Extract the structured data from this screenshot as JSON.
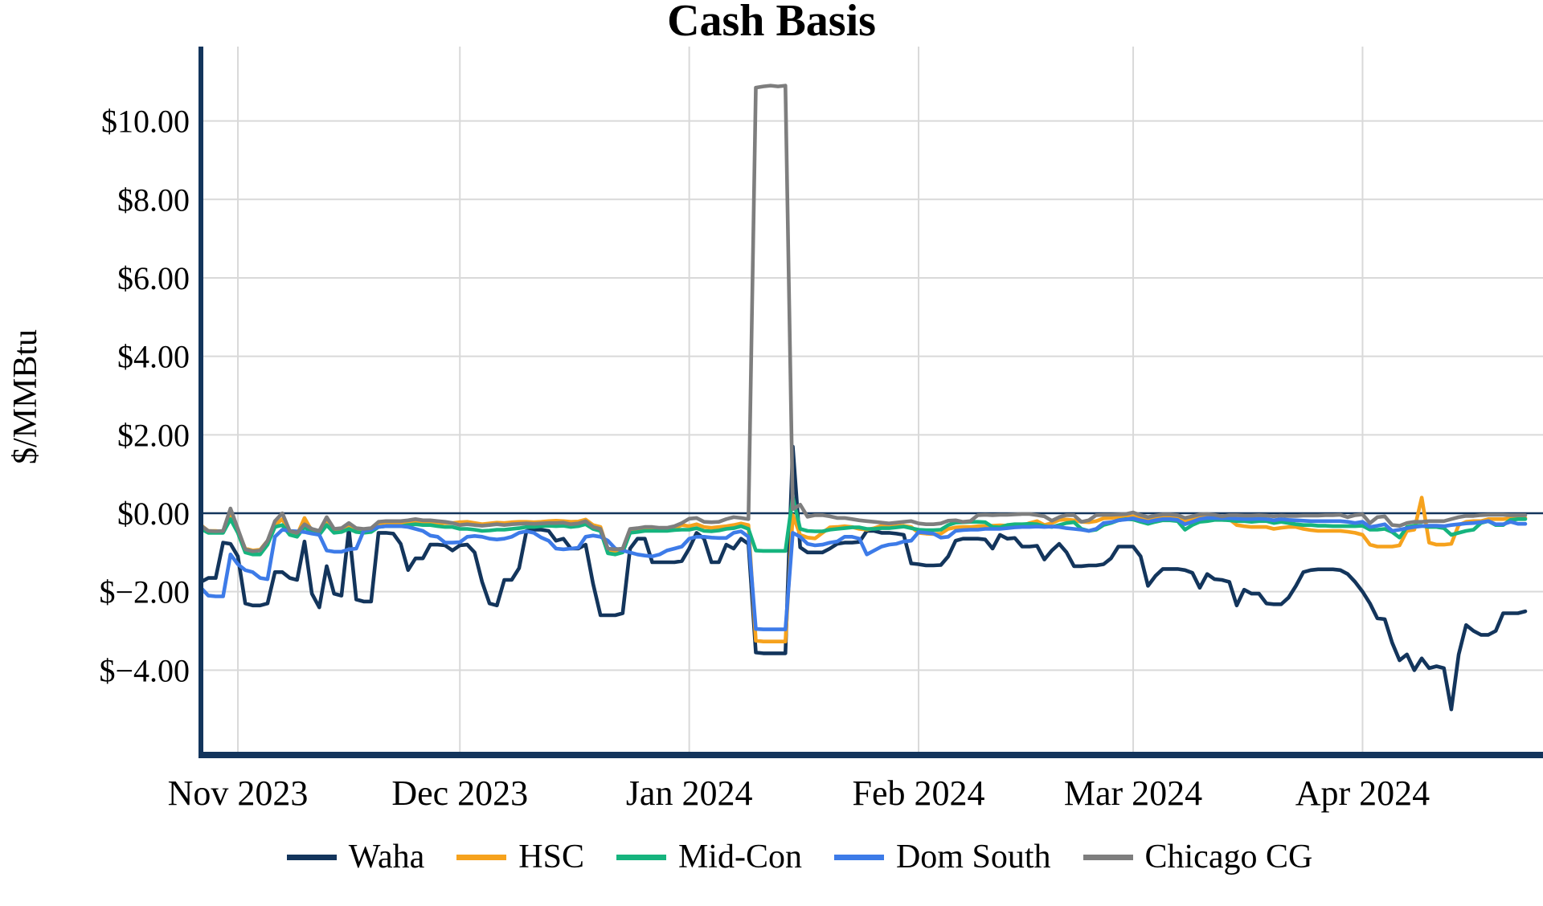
{
  "chart_data": {
    "type": "line",
    "title": "Cash Basis",
    "ylabel": "$/MMBtu",
    "grid": true,
    "legend_position": "bottom",
    "axis_color": "#13355C",
    "gridline_color": "#D9D9D9",
    "zero_line": true,
    "x_axis": {
      "start_date": "2023-10-27",
      "end_date": "2024-04-23",
      "n_points": 180,
      "tick_labels": [
        "Nov 2023",
        "Dec 2023",
        "Jan 2024",
        "Feb 2024",
        "Mar 2024",
        "Apr 2024"
      ],
      "tick_day_indices": [
        5,
        35,
        66,
        97,
        126,
        157
      ]
    },
    "y_axis": {
      "tick_values": [
        10,
        8,
        6,
        4,
        2,
        0,
        -2,
        -4
      ],
      "tick_labels": [
        "$10.00",
        "$8.00",
        "$6.00",
        "$4.00",
        "$2.00",
        "$0.00",
        "$−2.00",
        "$−4.00"
      ],
      "range": [
        -6.15,
        11.9
      ]
    },
    "series": [
      {
        "name": "Waha",
        "color": "#13355C",
        "values": [
          -1.75,
          -1.65,
          -1.65,
          -0.75,
          -0.78,
          -1.1,
          -2.3,
          -2.35,
          -2.35,
          -2.3,
          -1.5,
          -1.5,
          -1.65,
          -1.7,
          -0.72,
          -2.05,
          -2.4,
          -1.35,
          -2.05,
          -2.1,
          -0.4,
          -2.2,
          -2.25,
          -2.25,
          -0.5,
          -0.5,
          -0.52,
          -0.78,
          -1.45,
          -1.15,
          -1.15,
          -0.8,
          -0.8,
          -0.82,
          -0.95,
          -0.82,
          -0.8,
          -1.0,
          -1.75,
          -2.3,
          -2.35,
          -1.7,
          -1.7,
          -1.4,
          -0.45,
          -0.42,
          -0.42,
          -0.45,
          -0.7,
          -0.65,
          -0.9,
          -0.9,
          -0.8,
          -1.8,
          -2.6,
          -2.6,
          -2.6,
          -2.55,
          -0.9,
          -0.65,
          -0.65,
          -1.25,
          -1.25,
          -1.25,
          -1.25,
          -1.22,
          -0.9,
          -0.5,
          -0.65,
          -1.25,
          -1.25,
          -0.8,
          -0.9,
          -0.65,
          -0.78,
          -3.55,
          -3.57,
          -3.57,
          -3.57,
          -3.57,
          1.7,
          -0.87,
          -1.0,
          -1.0,
          -1.0,
          -0.9,
          -0.78,
          -0.75,
          -0.75,
          -0.73,
          -0.45,
          -0.45,
          -0.5,
          -0.5,
          -0.52,
          -0.55,
          -1.28,
          -1.3,
          -1.33,
          -1.33,
          -1.32,
          -1.1,
          -0.7,
          -0.65,
          -0.65,
          -0.65,
          -0.67,
          -0.9,
          -0.55,
          -0.65,
          -0.63,
          -0.85,
          -0.85,
          -0.83,
          -1.18,
          -0.95,
          -0.78,
          -1.0,
          -1.35,
          -1.35,
          -1.33,
          -1.33,
          -1.3,
          -1.15,
          -0.85,
          -0.85,
          -0.85,
          -1.1,
          -1.85,
          -1.6,
          -1.42,
          -1.42,
          -1.42,
          -1.45,
          -1.52,
          -1.9,
          -1.55,
          -1.68,
          -1.7,
          -1.75,
          -2.35,
          -1.95,
          -2.05,
          -2.05,
          -2.3,
          -2.32,
          -2.32,
          -2.15,
          -1.85,
          -1.5,
          -1.45,
          -1.43,
          -1.43,
          -1.43,
          -1.45,
          -1.55,
          -1.75,
          -2.0,
          -2.3,
          -2.68,
          -2.7,
          -3.3,
          -3.75,
          -3.6,
          -4.0,
          -3.7,
          -3.95,
          -3.9,
          -3.95,
          -5.0,
          -3.6,
          -2.85,
          -3.0,
          -3.1,
          -3.1,
          -3.0,
          -2.55,
          -2.55,
          -2.55,
          -2.5
        ]
      },
      {
        "name": "HSC",
        "color": "#F6A21D",
        "values": [
          -0.3,
          -0.45,
          -0.45,
          -0.47,
          -0.05,
          -0.45,
          -0.9,
          -0.95,
          -0.93,
          -0.7,
          -0.3,
          -0.15,
          -0.5,
          -0.55,
          -0.12,
          -0.45,
          -0.5,
          -0.2,
          -0.45,
          -0.42,
          -0.3,
          -0.42,
          -0.45,
          -0.42,
          -0.28,
          -0.25,
          -0.25,
          -0.25,
          -0.22,
          -0.2,
          -0.22,
          -0.22,
          -0.25,
          -0.25,
          -0.25,
          -0.23,
          -0.22,
          -0.25,
          -0.28,
          -0.26,
          -0.24,
          -0.25,
          -0.23,
          -0.22,
          -0.22,
          -0.23,
          -0.22,
          -0.2,
          -0.19,
          -0.2,
          -0.22,
          -0.21,
          -0.16,
          -0.3,
          -0.35,
          -0.95,
          -0.98,
          -0.95,
          -0.45,
          -0.42,
          -0.4,
          -0.4,
          -0.42,
          -0.42,
          -0.38,
          -0.3,
          -0.33,
          -0.28,
          -0.35,
          -0.37,
          -0.35,
          -0.33,
          -0.3,
          -0.26,
          -0.3,
          -3.25,
          -3.27,
          -3.27,
          -3.27,
          -3.27,
          -0.05,
          -0.55,
          -0.62,
          -0.64,
          -0.5,
          -0.36,
          -0.35,
          -0.33,
          -0.35,
          -0.4,
          -0.42,
          -0.38,
          -0.32,
          -0.35,
          -0.33,
          -0.32,
          -0.35,
          -0.5,
          -0.52,
          -0.53,
          -0.52,
          -0.4,
          -0.36,
          -0.35,
          -0.35,
          -0.33,
          -0.33,
          -0.32,
          -0.31,
          -0.32,
          -0.33,
          -0.32,
          -0.25,
          -0.2,
          -0.3,
          -0.25,
          -0.17,
          -0.16,
          -0.18,
          -0.22,
          -0.23,
          -0.2,
          -0.13,
          -0.12,
          -0.1,
          -0.09,
          -0.08,
          -0.12,
          -0.17,
          -0.13,
          -0.1,
          -0.1,
          -0.12,
          -0.19,
          -0.15,
          -0.12,
          -0.1,
          -0.1,
          -0.12,
          -0.15,
          -0.3,
          -0.33,
          -0.35,
          -0.35,
          -0.35,
          -0.4,
          -0.37,
          -0.35,
          -0.35,
          -0.4,
          -0.43,
          -0.45,
          -0.45,
          -0.45,
          -0.45,
          -0.47,
          -0.5,
          -0.55,
          -0.8,
          -0.85,
          -0.85,
          -0.85,
          -0.82,
          -0.45,
          -0.42,
          0.4,
          -0.75,
          -0.8,
          -0.8,
          -0.78,
          -0.3,
          -0.22,
          -0.2,
          -0.2,
          -0.15,
          -0.15,
          -0.15,
          -0.13,
          -0.12,
          -0.12
        ]
      },
      {
        "name": "Mid-Con",
        "color": "#16B47E",
        "values": [
          -0.4,
          -0.5,
          -0.5,
          -0.5,
          -0.15,
          -0.5,
          -1.0,
          -1.05,
          -1.05,
          -0.8,
          -0.35,
          -0.3,
          -0.55,
          -0.6,
          -0.35,
          -0.5,
          -0.55,
          -0.3,
          -0.5,
          -0.48,
          -0.4,
          -0.48,
          -0.5,
          -0.48,
          -0.35,
          -0.33,
          -0.33,
          -0.33,
          -0.3,
          -0.28,
          -0.3,
          -0.3,
          -0.33,
          -0.35,
          -0.35,
          -0.4,
          -0.4,
          -0.42,
          -0.45,
          -0.44,
          -0.42,
          -0.42,
          -0.4,
          -0.38,
          -0.35,
          -0.35,
          -0.33,
          -0.32,
          -0.33,
          -0.32,
          -0.35,
          -0.33,
          -0.28,
          -0.4,
          -0.45,
          -1.02,
          -1.05,
          -1.0,
          -0.5,
          -0.48,
          -0.45,
          -0.45,
          -0.45,
          -0.45,
          -0.43,
          -0.42,
          -0.42,
          -0.38,
          -0.45,
          -0.46,
          -0.44,
          -0.4,
          -0.38,
          -0.33,
          -0.4,
          -0.95,
          -0.96,
          -0.96,
          -0.96,
          -0.96,
          0.42,
          -0.4,
          -0.45,
          -0.46,
          -0.46,
          -0.42,
          -0.4,
          -0.38,
          -0.36,
          -0.36,
          -0.4,
          -0.4,
          -0.38,
          -0.38,
          -0.36,
          -0.34,
          -0.38,
          -0.42,
          -0.43,
          -0.43,
          -0.42,
          -0.3,
          -0.24,
          -0.23,
          -0.22,
          -0.22,
          -0.23,
          -0.35,
          -0.36,
          -0.3,
          -0.28,
          -0.28,
          -0.27,
          -0.28,
          -0.33,
          -0.35,
          -0.3,
          -0.25,
          -0.23,
          -0.4,
          -0.45,
          -0.42,
          -0.3,
          -0.25,
          -0.18,
          -0.15,
          -0.16,
          -0.22,
          -0.27,
          -0.22,
          -0.18,
          -0.18,
          -0.2,
          -0.42,
          -0.3,
          -0.22,
          -0.2,
          -0.17,
          -0.17,
          -0.18,
          -0.2,
          -0.2,
          -0.22,
          -0.2,
          -0.2,
          -0.25,
          -0.22,
          -0.25,
          -0.28,
          -0.3,
          -0.3,
          -0.32,
          -0.32,
          -0.33,
          -0.33,
          -0.33,
          -0.33,
          -0.32,
          -0.42,
          -0.42,
          -0.4,
          -0.48,
          -0.62,
          -0.35,
          -0.32,
          -0.32,
          -0.35,
          -0.35,
          -0.38,
          -0.55,
          -0.5,
          -0.45,
          -0.42,
          -0.25,
          -0.2,
          -0.3,
          -0.3,
          -0.17,
          -0.15,
          -0.15
        ]
      },
      {
        "name": "Dom South",
        "color": "#3D7BE8",
        "values": [
          -1.9,
          -2.1,
          -2.12,
          -2.12,
          -1.05,
          -1.3,
          -1.45,
          -1.5,
          -1.65,
          -1.68,
          -0.6,
          -0.42,
          -0.45,
          -0.46,
          -0.48,
          -0.52,
          -0.55,
          -0.95,
          -0.98,
          -0.98,
          -0.92,
          -0.9,
          -0.45,
          -0.42,
          -0.35,
          -0.33,
          -0.33,
          -0.33,
          -0.35,
          -0.4,
          -0.45,
          -0.57,
          -0.6,
          -0.75,
          -0.75,
          -0.74,
          -0.6,
          -0.58,
          -0.6,
          -0.65,
          -0.67,
          -0.65,
          -0.6,
          -0.5,
          -0.46,
          -0.5,
          -0.62,
          -0.7,
          -0.9,
          -0.92,
          -0.9,
          -0.88,
          -0.6,
          -0.57,
          -0.6,
          -0.7,
          -0.9,
          -0.95,
          -1.0,
          -1.05,
          -1.08,
          -1.1,
          -1.05,
          -0.95,
          -0.9,
          -0.85,
          -0.65,
          -0.6,
          -0.6,
          -0.62,
          -0.63,
          -0.63,
          -0.5,
          -0.46,
          -0.6,
          -2.95,
          -2.96,
          -2.96,
          -2.96,
          -2.96,
          -0.5,
          -0.6,
          -0.78,
          -0.82,
          -0.8,
          -0.75,
          -0.72,
          -0.6,
          -0.6,
          -0.65,
          -1.05,
          -0.95,
          -0.85,
          -0.8,
          -0.78,
          -0.72,
          -0.7,
          -0.48,
          -0.5,
          -0.52,
          -0.62,
          -0.6,
          -0.45,
          -0.43,
          -0.42,
          -0.42,
          -0.4,
          -0.4,
          -0.4,
          -0.38,
          -0.36,
          -0.35,
          -0.35,
          -0.34,
          -0.35,
          -0.34,
          -0.35,
          -0.38,
          -0.4,
          -0.42,
          -0.45,
          -0.4,
          -0.25,
          -0.23,
          -0.18,
          -0.16,
          -0.13,
          -0.18,
          -0.22,
          -0.18,
          -0.15,
          -0.15,
          -0.17,
          -0.28,
          -0.22,
          -0.15,
          -0.12,
          -0.12,
          -0.13,
          -0.12,
          -0.14,
          -0.15,
          -0.15,
          -0.14,
          -0.15,
          -0.18,
          -0.15,
          -0.17,
          -0.18,
          -0.19,
          -0.2,
          -0.2,
          -0.2,
          -0.2,
          -0.2,
          -0.22,
          -0.25,
          -0.22,
          -0.35,
          -0.32,
          -0.28,
          -0.45,
          -0.42,
          -0.38,
          -0.35,
          -0.33,
          -0.32,
          -0.32,
          -0.33,
          -0.3,
          -0.28,
          -0.26,
          -0.25,
          -0.23,
          -0.2,
          -0.28,
          -0.28,
          -0.22,
          -0.27,
          -0.27
        ]
      },
      {
        "name": "Chicago CG",
        "color": "#7E7E7E",
        "values": [
          -0.32,
          -0.45,
          -0.46,
          -0.45,
          0.12,
          -0.4,
          -0.92,
          -0.97,
          -0.95,
          -0.7,
          -0.2,
          0.0,
          -0.45,
          -0.5,
          -0.28,
          -0.4,
          -0.45,
          -0.1,
          -0.4,
          -0.38,
          -0.25,
          -0.38,
          -0.4,
          -0.38,
          -0.22,
          -0.2,
          -0.2,
          -0.2,
          -0.18,
          -0.15,
          -0.18,
          -0.18,
          -0.2,
          -0.22,
          -0.25,
          -0.3,
          -0.28,
          -0.3,
          -0.32,
          -0.3,
          -0.28,
          -0.3,
          -0.28,
          -0.27,
          -0.26,
          -0.27,
          -0.26,
          -0.25,
          -0.25,
          -0.24,
          -0.28,
          -0.26,
          -0.2,
          -0.35,
          -0.4,
          -0.9,
          -0.92,
          -0.9,
          -0.4,
          -0.38,
          -0.35,
          -0.35,
          -0.37,
          -0.37,
          -0.33,
          -0.25,
          -0.14,
          -0.12,
          -0.22,
          -0.23,
          -0.22,
          -0.15,
          -0.1,
          -0.12,
          -0.15,
          10.85,
          10.88,
          10.9,
          10.88,
          10.9,
          0.1,
          0.22,
          -0.09,
          -0.05,
          -0.05,
          -0.08,
          -0.12,
          -0.12,
          -0.15,
          -0.18,
          -0.2,
          -0.22,
          -0.24,
          -0.26,
          -0.24,
          -0.22,
          -0.2,
          -0.26,
          -0.28,
          -0.28,
          -0.26,
          -0.19,
          -0.18,
          -0.22,
          -0.2,
          -0.05,
          -0.04,
          -0.05,
          -0.04,
          -0.04,
          -0.03,
          -0.02,
          -0.02,
          -0.05,
          -0.08,
          -0.19,
          -0.1,
          -0.05,
          -0.05,
          -0.22,
          -0.18,
          -0.05,
          -0.04,
          -0.04,
          -0.03,
          -0.02,
          0.02,
          -0.05,
          -0.1,
          -0.06,
          -0.03,
          -0.03,
          -0.05,
          -0.12,
          -0.08,
          -0.03,
          -0.02,
          -0.04,
          -0.08,
          -0.05,
          -0.05,
          -0.06,
          -0.06,
          -0.05,
          -0.06,
          -0.08,
          -0.06,
          -0.07,
          -0.07,
          -0.06,
          -0.06,
          -0.06,
          -0.05,
          -0.05,
          -0.04,
          -0.1,
          -0.05,
          -0.03,
          -0.25,
          -0.1,
          -0.08,
          -0.3,
          -0.32,
          -0.25,
          -0.22,
          -0.22,
          -0.2,
          -0.2,
          -0.2,
          -0.15,
          -0.1,
          -0.07,
          -0.07,
          -0.05,
          -0.04,
          -0.04,
          -0.04,
          -0.05,
          -0.05,
          -0.05
        ]
      }
    ]
  }
}
